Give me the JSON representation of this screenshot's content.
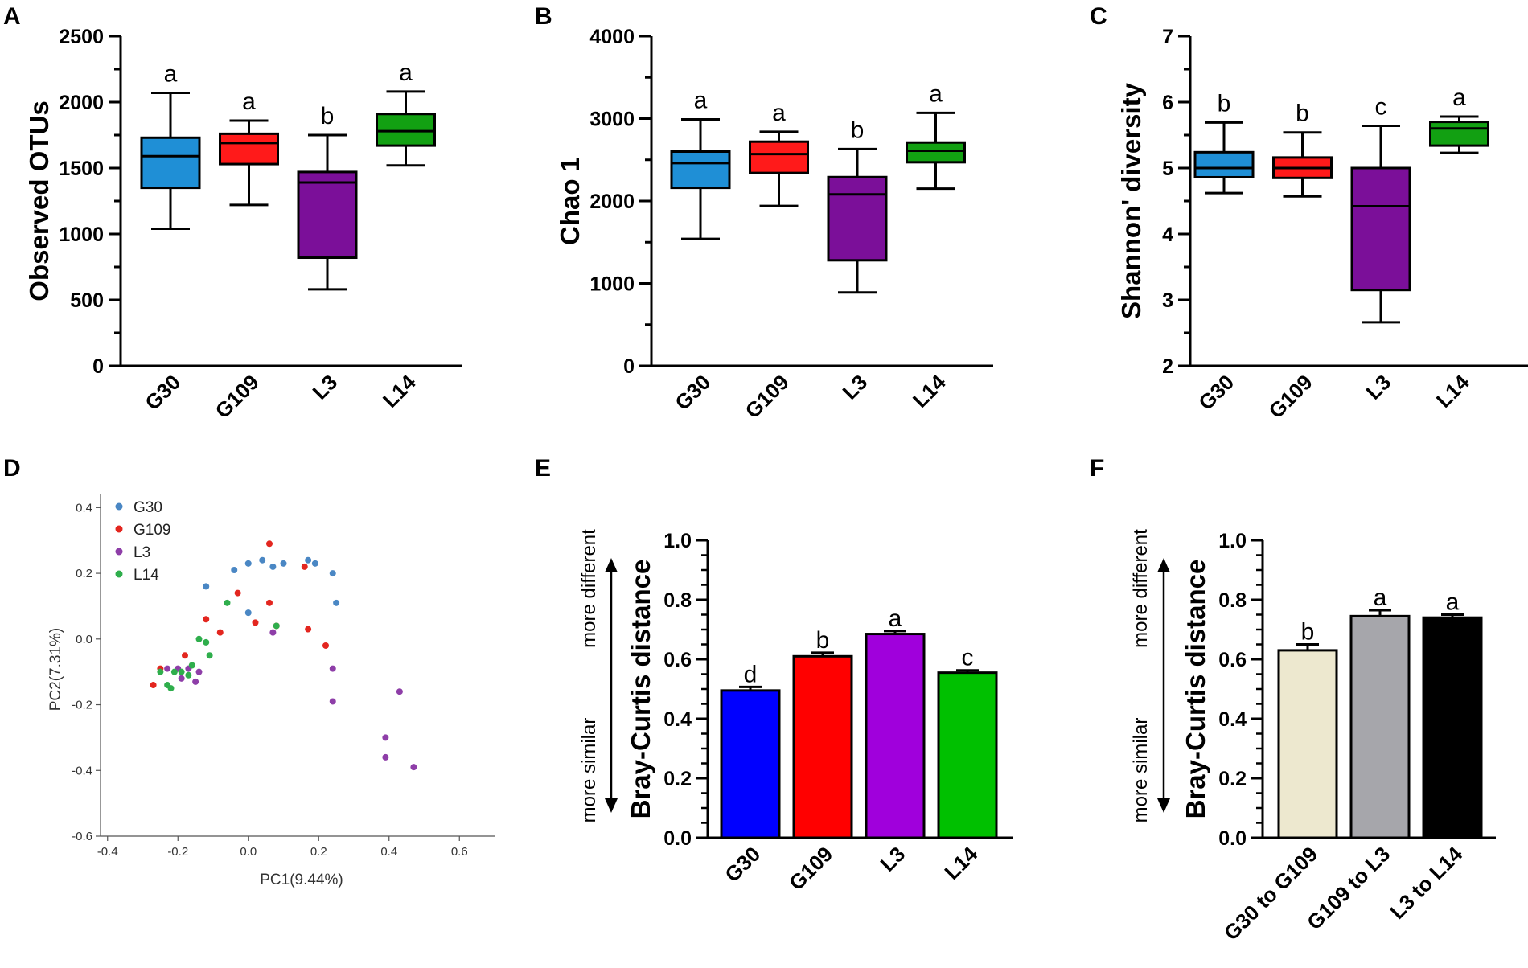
{
  "chart_data": [
    {
      "panel": "A",
      "type": "boxplot",
      "ylabel": "Observed OTUs",
      "ylim": [
        0,
        2500
      ],
      "yticks": [
        0,
        500,
        1000,
        1500,
        2000,
        2500
      ],
      "categories": [
        "G30",
        "G109",
        "L3",
        "L14"
      ],
      "colors": [
        "#1f8fd6",
        "#ff1a1a",
        "#7b0f99",
        "#12a012"
      ],
      "boxes": [
        {
          "min": 1040,
          "q1": 1350,
          "median": 1590,
          "q3": 1730,
          "max": 2070,
          "sig": "a"
        },
        {
          "min": 1220,
          "q1": 1530,
          "median": 1690,
          "q3": 1760,
          "max": 1860,
          "sig": "a"
        },
        {
          "min": 580,
          "q1": 820,
          "median": 1390,
          "q3": 1470,
          "max": 1750,
          "sig": "b"
        },
        {
          "min": 1520,
          "q1": 1670,
          "median": 1780,
          "q3": 1910,
          "max": 2080,
          "sig": "a"
        }
      ]
    },
    {
      "panel": "B",
      "type": "boxplot",
      "ylabel": "Chao 1",
      "ylim": [
        0,
        4000
      ],
      "yticks": [
        0,
        1000,
        2000,
        3000,
        4000
      ],
      "categories": [
        "G30",
        "G109",
        "L3",
        "L14"
      ],
      "colors": [
        "#1f8fd6",
        "#ff1a1a",
        "#7b0f99",
        "#12a012"
      ],
      "boxes": [
        {
          "min": 1540,
          "q1": 2160,
          "median": 2460,
          "q3": 2600,
          "max": 2990,
          "sig": "a"
        },
        {
          "min": 1940,
          "q1": 2340,
          "median": 2570,
          "q3": 2720,
          "max": 2840,
          "sig": "a"
        },
        {
          "min": 890,
          "q1": 1280,
          "median": 2080,
          "q3": 2290,
          "max": 2630,
          "sig": "b"
        },
        {
          "min": 2150,
          "q1": 2470,
          "median": 2610,
          "q3": 2710,
          "max": 3070,
          "sig": "a"
        }
      ]
    },
    {
      "panel": "C",
      "type": "boxplot",
      "ylabel": "Shannon' diversity",
      "ylim": [
        2,
        7
      ],
      "yticks": [
        2,
        3,
        4,
        5,
        6,
        7
      ],
      "categories": [
        "G30",
        "G109",
        "L3",
        "L14"
      ],
      "colors": [
        "#1f8fd6",
        "#ff1a1a",
        "#7b0f99",
        "#12a012"
      ],
      "boxes": [
        {
          "min": 4.62,
          "q1": 4.86,
          "median": 5.0,
          "q3": 5.24,
          "max": 5.69,
          "sig": "b"
        },
        {
          "min": 4.57,
          "q1": 4.85,
          "median": 5.0,
          "q3": 5.16,
          "max": 5.54,
          "sig": "b"
        },
        {
          "min": 2.66,
          "q1": 3.15,
          "median": 4.42,
          "q3": 5.0,
          "max": 5.64,
          "sig": "c"
        },
        {
          "min": 5.23,
          "q1": 5.34,
          "median": 5.6,
          "q3": 5.7,
          "max": 5.78,
          "sig": "a"
        }
      ]
    },
    {
      "panel": "D",
      "type": "scatter",
      "xlabel": "PC1(9.44%)",
      "ylabel": "PC2(7.31%)",
      "xlim": [
        -0.42,
        0.7
      ],
      "ylim": [
        -0.6,
        0.44
      ],
      "xticks": [
        "-0.4",
        "-0.2",
        "0.0",
        "0.2",
        "0.4",
        "0.6"
      ],
      "yticks": [
        "-0.6",
        "-0.4",
        "-0.2",
        "0.0",
        "0.2",
        "0.4"
      ],
      "series": [
        {
          "name": "G30",
          "color": "#4a87c4",
          "points": [
            [
              -0.12,
              0.16
            ],
            [
              -0.04,
              0.21
            ],
            [
              0.0,
              0.23
            ],
            [
              0.04,
              0.24
            ],
            [
              0.07,
              0.22
            ],
            [
              0.1,
              0.23
            ],
            [
              0.17,
              0.24
            ],
            [
              0.19,
              0.23
            ],
            [
              0.24,
              0.2
            ],
            [
              0.25,
              0.11
            ],
            [
              0.0,
              0.08
            ]
          ]
        },
        {
          "name": "G109",
          "color": "#e3261f",
          "points": [
            [
              -0.27,
              -0.14
            ],
            [
              -0.25,
              -0.09
            ],
            [
              -0.18,
              -0.05
            ],
            [
              -0.12,
              0.06
            ],
            [
              -0.08,
              0.02
            ],
            [
              -0.03,
              0.14
            ],
            [
              0.02,
              0.05
            ],
            [
              0.06,
              0.29
            ],
            [
              0.06,
              0.11
            ],
            [
              0.08,
              0.04
            ],
            [
              0.16,
              0.22
            ],
            [
              0.17,
              0.03
            ],
            [
              0.22,
              -0.02
            ]
          ]
        },
        {
          "name": "L3",
          "color": "#8e3ea8",
          "points": [
            [
              -0.23,
              -0.09
            ],
            [
              -0.2,
              -0.09
            ],
            [
              -0.19,
              -0.12
            ],
            [
              -0.17,
              -0.09
            ],
            [
              -0.15,
              -0.13
            ],
            [
              -0.14,
              -0.1
            ],
            [
              0.07,
              0.02
            ],
            [
              0.24,
              -0.09
            ],
            [
              0.24,
              -0.19
            ],
            [
              0.39,
              -0.3
            ],
            [
              0.39,
              -0.36
            ],
            [
              0.43,
              -0.16
            ],
            [
              0.47,
              -0.39
            ]
          ]
        },
        {
          "name": "L14",
          "color": "#2fae4c",
          "points": [
            [
              -0.25,
              -0.1
            ],
            [
              -0.23,
              -0.14
            ],
            [
              -0.22,
              -0.15
            ],
            [
              -0.21,
              -0.1
            ],
            [
              -0.19,
              -0.1
            ],
            [
              -0.17,
              -0.11
            ],
            [
              -0.16,
              -0.08
            ],
            [
              -0.14,
              0.0
            ],
            [
              -0.12,
              -0.01
            ],
            [
              -0.11,
              -0.05
            ],
            [
              -0.06,
              0.11
            ],
            [
              0.08,
              0.04
            ]
          ]
        }
      ]
    },
    {
      "panel": "E",
      "type": "bar",
      "ylabel": "Bray-Curtis distance",
      "ylim": [
        0,
        1.0
      ],
      "yticks": [
        "0.0",
        "0.2",
        "0.4",
        "0.6",
        "0.8",
        "1.0"
      ],
      "categories": [
        "G30",
        "G109",
        "L3",
        "L14"
      ],
      "values": [
        0.495,
        0.61,
        0.685,
        0.555
      ],
      "errors": [
        0.012,
        0.012,
        0.01,
        0.008
      ],
      "colors": [
        "#0000ff",
        "#ff0000",
        "#a000dc",
        "#00c000"
      ],
      "sig": [
        "d",
        "b",
        "a",
        "c"
      ],
      "side_top": "more different",
      "side_bottom": "more similar"
    },
    {
      "panel": "F",
      "type": "bar",
      "ylabel": "Bray-Curtis distance",
      "ylim": [
        0,
        1.0
      ],
      "yticks": [
        "0.0",
        "0.2",
        "0.4",
        "0.6",
        "0.8",
        "1.0"
      ],
      "categories": [
        "G30 to G109",
        "G109 to L3",
        "L3 to L14"
      ],
      "values": [
        0.63,
        0.745,
        0.74
      ],
      "errors": [
        0.02,
        0.02,
        0.01
      ],
      "colors": [
        "#ede8cf",
        "#a6a6ab",
        "#000000"
      ],
      "sig": [
        "b",
        "a",
        "a"
      ],
      "side_top": "more different",
      "side_bottom": "more similar"
    }
  ]
}
